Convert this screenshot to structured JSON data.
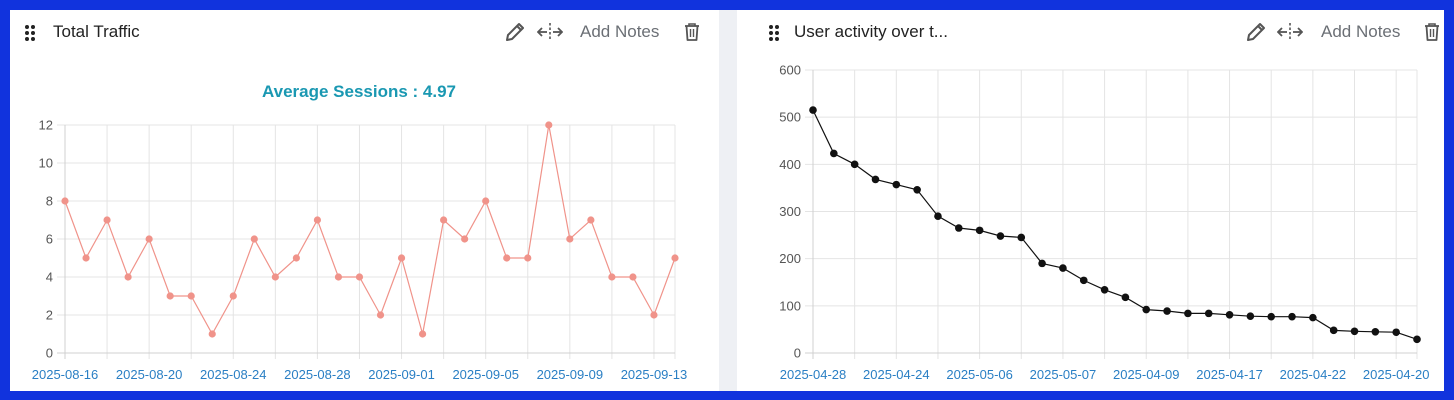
{
  "panels": [
    {
      "title": "Total Traffic",
      "add_notes_label": "Add Notes",
      "icons": [
        "drag-handle-icon",
        "pencil-icon",
        "move-icon",
        "trash-icon"
      ]
    },
    {
      "title": "User activity over t...",
      "add_notes_label": "Add Notes",
      "icons": [
        "drag-handle-icon",
        "pencil-icon",
        "move-icon",
        "trash-icon"
      ]
    }
  ],
  "chart_data": [
    {
      "type": "line",
      "title": "Average  Sessions : 4.97",
      "color": "#f0938a",
      "ylim": [
        0,
        12
      ],
      "yticks": [
        0,
        2,
        4,
        6,
        8,
        10,
        12
      ],
      "grid": true,
      "x_tick_labels": [
        "2025-08-16",
        "2025-08-20",
        "2025-08-24",
        "2025-08-28",
        "2025-09-01",
        "2025-09-05",
        "2025-09-09",
        "2025-09-13"
      ],
      "values": [
        8,
        5,
        7,
        4,
        6,
        3,
        3,
        1,
        3,
        6,
        4,
        5,
        7,
        4,
        4,
        2,
        5,
        1,
        7,
        6,
        8,
        5,
        5,
        12,
        6,
        7,
        4,
        4,
        2,
        5
      ]
    },
    {
      "type": "line",
      "title": "",
      "color": "#111111",
      "ylim": [
        0,
        600
      ],
      "yticks": [
        0,
        100,
        200,
        300,
        400,
        500,
        600
      ],
      "grid": true,
      "x_tick_labels": [
        "2025-04-28",
        "2025-04-24",
        "2025-05-06",
        "2025-05-07",
        "2025-04-09",
        "2025-04-17",
        "2025-04-22",
        "2025-04-20"
      ],
      "values": [
        515,
        423,
        400,
        368,
        357,
        346,
        290,
        265,
        260,
        248,
        245,
        190,
        180,
        154,
        134,
        118,
        92,
        89,
        84,
        84,
        81,
        78,
        77,
        77,
        75,
        48,
        46,
        45,
        44,
        29
      ]
    }
  ]
}
